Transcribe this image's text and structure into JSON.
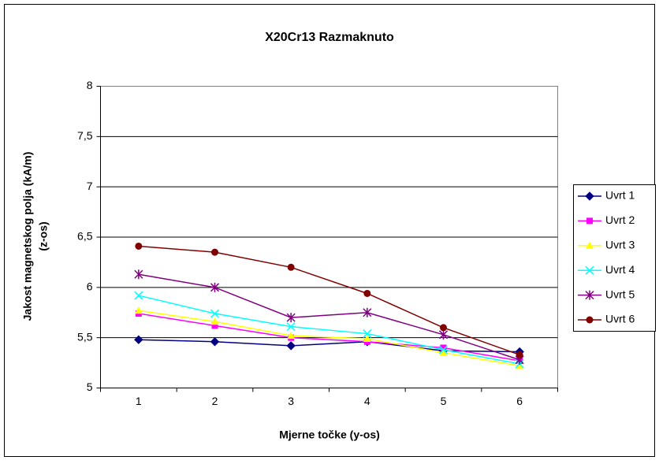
{
  "chart_data": {
    "type": "line",
    "title": "X20Cr13 Razmaknuto",
    "xlabel": "Mjerne točke (y-os)",
    "ylabel": [
      "Jakost magnetskog polja (kA/m)",
      "(z-os)"
    ],
    "categories": [
      "1",
      "2",
      "3",
      "4",
      "5",
      "6"
    ],
    "ylim": [
      5,
      8
    ],
    "yticks": [
      5,
      {
        "value": 5.5,
        "label": "5,5"
      },
      6,
      {
        "value": 6.5,
        "label": "6,5"
      },
      7,
      {
        "value": 7.5,
        "label": "7,5"
      },
      8
    ],
    "grid": true,
    "legend": "right",
    "series": [
      {
        "name": "Uvrt 1",
        "color": "#000080",
        "marker": "diamond",
        "values": [
          5.48,
          5.46,
          5.42,
          5.46,
          5.37,
          5.36
        ]
      },
      {
        "name": "Uvrt 2",
        "color": "#ff00ff",
        "marker": "square",
        "values": [
          5.74,
          5.62,
          5.5,
          5.46,
          5.4,
          5.27
        ]
      },
      {
        "name": "Uvrt 3",
        "color": "#ffff00",
        "marker": "triangle",
        "values": [
          5.77,
          5.66,
          5.52,
          5.49,
          5.35,
          5.22
        ]
      },
      {
        "name": "Uvrt 4",
        "color": "#00ffff",
        "marker": "x",
        "values": [
          5.92,
          5.74,
          5.61,
          5.54,
          5.38,
          5.24
        ]
      },
      {
        "name": "Uvrt 5",
        "color": "#800080",
        "marker": "star",
        "values": [
          6.13,
          6.0,
          5.7,
          5.75,
          5.53,
          5.28
        ]
      },
      {
        "name": "Uvrt 6",
        "color": "#800000",
        "marker": "circle",
        "values": [
          6.41,
          6.35,
          6.2,
          5.94,
          5.6,
          5.33
        ]
      }
    ]
  }
}
